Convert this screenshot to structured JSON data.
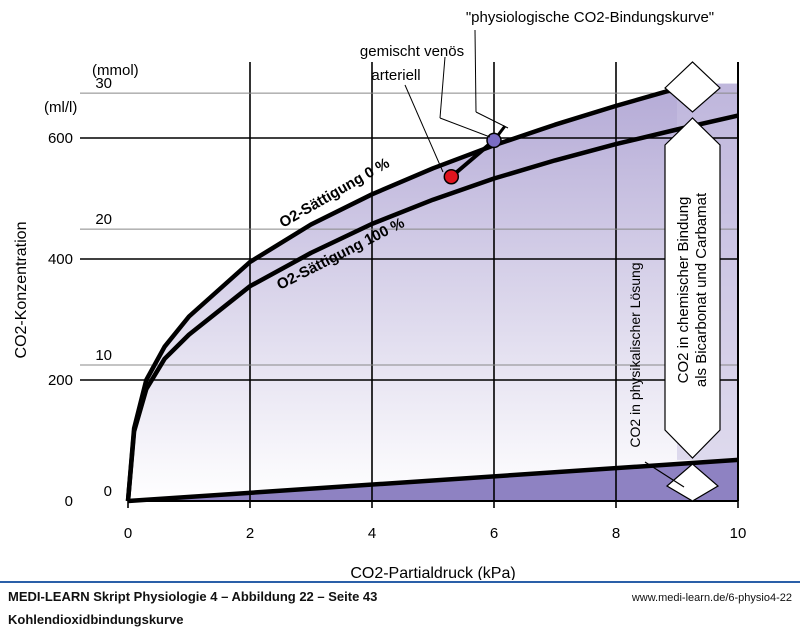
{
  "chart_data": {
    "type": "line",
    "title": "\"physiologische CO2-Bindungskurve\"",
    "xlabel": "CO2-Partialdruck (kPa)",
    "ylabel": "CO2-Konzentration",
    "xlim": [
      0,
      10
    ],
    "ylim_mll": [
      0,
      700
    ],
    "ylim_mmol": [
      0,
      31.2
    ],
    "x_ticks": [
      "0",
      "2",
      "4",
      "6",
      "8",
      "10"
    ],
    "y_ticks_mll": [
      "0",
      "200",
      "400",
      "600"
    ],
    "y_ticks_mmol": [
      "0",
      "10",
      "20",
      "30"
    ],
    "unit_mll": "(ml/l)",
    "unit_mmol": "(mmol)",
    "series": [
      {
        "name": "O2-Sättigung 0 %",
        "x": [
          0,
          0.1,
          0.3,
          0.6,
          1,
          2,
          3,
          4,
          5,
          6,
          7,
          8,
          9,
          9.3
        ],
        "y": [
          0,
          120,
          200,
          255,
          305,
          395,
          457,
          507,
          550,
          588,
          622,
          653,
          682,
          690
        ]
      },
      {
        "name": "O2-Sättigung 100 %",
        "x": [
          0,
          0.1,
          0.3,
          0.6,
          1,
          2,
          3,
          4,
          5,
          6,
          7,
          8,
          9,
          10
        ],
        "y": [
          0,
          115,
          185,
          235,
          275,
          355,
          410,
          458,
          498,
          533,
          563,
          590,
          614,
          637
        ]
      },
      {
        "name": "CO2 in physikalischer Lösung",
        "x": [
          0,
          10
        ],
        "y": [
          0,
          68
        ]
      }
    ],
    "points": [
      {
        "name": "arteriell",
        "x": 5.3,
        "y": 536,
        "color": "#e0141e"
      },
      {
        "name": "gemischt venös",
        "x": 6.0,
        "y": 596,
        "color": "#7a6cc4"
      }
    ],
    "annotations": {
      "physiologisch": "\"physiologische CO2-Bindungskurve\"",
      "venoes": "gemischt venös",
      "arteriell": "arteriell",
      "chemisch_line1": "CO2 in chemischer Bindung",
      "chemisch_line2": "als Bicarbonat und Carbamat",
      "physikalisch": "CO2 in physikalischer Lösung"
    },
    "colors": {
      "fill_dark": "#8e82c2",
      "fill_light": "#c9c1e2",
      "arterial": "#e0141e",
      "venous": "#7a6cc4"
    },
    "grid": true
  },
  "footer": {
    "title": "MEDI-LEARN Skript Physiologie 4 – Abbildung 22 – Seite 43",
    "url": "www.medi-learn.de/6-physio4-22",
    "subtitle": "Kohlendioxidbindungskurve"
  }
}
